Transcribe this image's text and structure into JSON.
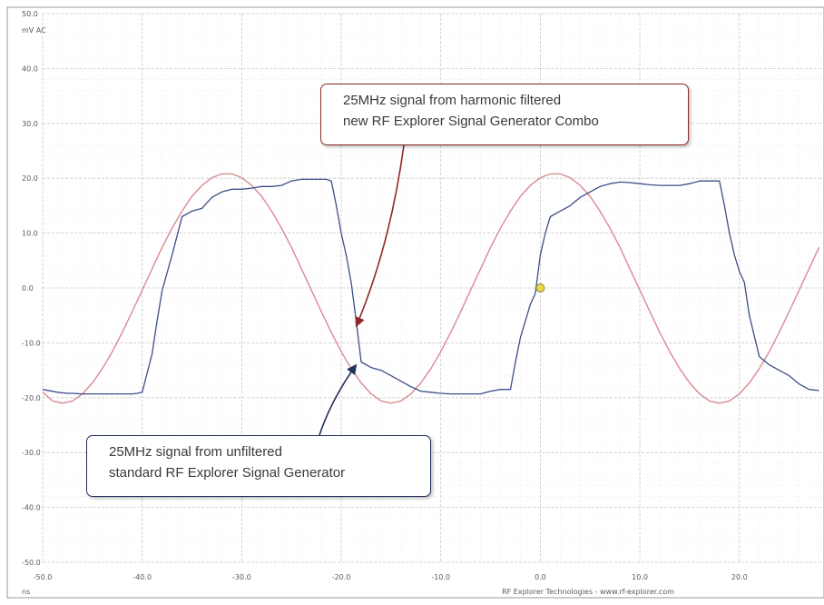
{
  "chart_data": {
    "type": "line",
    "title": "",
    "xlabel": "ns",
    "ylabel": "mV AC",
    "footer": "RF Explorer Technologies - www.rf-explorer.com",
    "xlim": [
      -50,
      28.5
    ],
    "ylim": [
      -50,
      50
    ],
    "x_ticks": [
      -50,
      -40,
      -30,
      -20,
      -10,
      0,
      10,
      20
    ],
    "x_tick_labels": [
      "-50.0",
      "-40.0",
      "-30.0",
      "-20.0",
      "-10.0",
      "0.0",
      "10.0",
      "20.0"
    ],
    "y_ticks": [
      50,
      40,
      30,
      20,
      10,
      0,
      -10,
      -20,
      -30,
      -40,
      -50
    ],
    "y_tick_labels": [
      "50.0",
      "40.0",
      "30.0",
      "20.0",
      "10.0",
      "0.0",
      "-10.0",
      "-20.0",
      "-30.0",
      "-40.0",
      "-50.0"
    ],
    "grid": true,
    "series": [
      {
        "color": "#d98a90",
        "x": [
          -50,
          -49,
          -48,
          -47,
          -46,
          -45,
          -44,
          -43,
          -42,
          -41,
          -40,
          -39,
          -38,
          -37,
          -36,
          -35,
          -34,
          -33,
          -32,
          -31,
          -30,
          -29,
          -28,
          -27,
          -26,
          -25,
          -24,
          -23,
          -22,
          -21,
          -20,
          -19,
          -18,
          -17,
          -16,
          -15,
          -14,
          -13,
          -12,
          -11,
          -10,
          -9,
          -8,
          -7,
          -6,
          -5,
          -4,
          -3,
          -2,
          -1,
          0,
          1,
          2,
          3,
          4,
          5,
          6,
          7,
          8,
          9,
          10,
          11,
          12,
          13,
          14,
          15,
          16,
          17,
          18,
          19,
          20,
          21,
          22,
          23,
          24,
          25,
          26,
          27,
          28
        ],
        "y": [
          -19.0,
          -20.6,
          -21.0,
          -20.6,
          -19.3,
          -17.3,
          -14.7,
          -11.6,
          -8.1,
          -4.3,
          -0.4,
          3.5,
          7.4,
          10.9,
          14.0,
          16.7,
          18.7,
          20.1,
          20.8,
          20.8,
          20.1,
          18.7,
          16.7,
          14.0,
          10.9,
          7.4,
          3.5,
          -0.4,
          -4.3,
          -8.1,
          -11.6,
          -14.7,
          -17.3,
          -19.3,
          -20.6,
          -21.0,
          -20.6,
          -19.3,
          -17.3,
          -14.7,
          -11.6,
          -8.1,
          -4.3,
          -0.4,
          3.5,
          7.4,
          10.9,
          14.0,
          16.7,
          18.7,
          20.1,
          20.8,
          20.8,
          20.1,
          18.7,
          16.7,
          14.0,
          10.9,
          7.4,
          3.5,
          -0.4,
          -4.3,
          -8.1,
          -11.6,
          -14.7,
          -17.3,
          -19.3,
          -20.6,
          -21.0,
          -20.6,
          -19.3,
          -17.3,
          -14.7,
          -11.6,
          -8.1,
          -4.3,
          -0.4,
          3.5,
          7.4
        ]
      },
      {
        "color": "#3d4e8a",
        "x": [
          -50,
          -48.5,
          -47.5,
          -47,
          -46,
          -45,
          -44.5,
          -44,
          -43.5,
          -43,
          -42,
          -41,
          -40.5,
          -40,
          -39,
          -38.5,
          -38,
          -37,
          -36,
          -35,
          -34,
          -33,
          -32,
          -31,
          -30,
          -29,
          -28,
          -27,
          -26,
          -25,
          -24,
          -23,
          -22,
          -21.5,
          -21,
          -20.5,
          -20,
          -19.5,
          -19,
          -18.5,
          -18,
          -17,
          -16,
          -15,
          -14,
          -13,
          -12,
          -11,
          -10,
          -9,
          -8,
          -7,
          -6,
          -5,
          -4,
          -3,
          -2.5,
          -2,
          -1.5,
          -1,
          -0.5,
          0,
          0.5,
          1,
          2,
          3,
          4,
          5,
          6,
          7,
          8,
          9,
          10,
          11,
          12,
          13,
          14,
          15,
          16,
          17,
          18,
          18.5,
          19,
          19.5,
          20,
          20.5,
          21,
          22,
          23,
          24,
          25,
          26,
          27,
          28
        ],
        "y": [
          -18.5,
          -19.0,
          -19.2,
          -19.2,
          -19.3,
          -19.3,
          -19.3,
          -19.3,
          -19.3,
          -19.3,
          -19.3,
          -19.3,
          -19.2,
          -19.0,
          -12.0,
          -6.0,
          -0.5,
          6.0,
          13.0,
          14.0,
          14.5,
          16.5,
          17.5,
          18.0,
          18.0,
          18.2,
          18.5,
          18.5,
          18.7,
          19.5,
          19.8,
          19.8,
          19.8,
          19.8,
          19.5,
          15.0,
          10.0,
          6.0,
          1.0,
          -6.0,
          -13.5,
          -14.5,
          -15.0,
          -16.0,
          -17.0,
          -18.0,
          -18.8,
          -19.0,
          -19.2,
          -19.3,
          -19.3,
          -19.3,
          -19.3,
          -18.8,
          -18.5,
          -18.5,
          -13.5,
          -9.0,
          -6.0,
          -3.0,
          -1.0,
          6.0,
          10.0,
          13.0,
          14.0,
          15.0,
          16.5,
          17.5,
          18.5,
          19.0,
          19.3,
          19.2,
          19.0,
          18.8,
          18.7,
          18.7,
          18.7,
          19.0,
          19.5,
          19.5,
          19.5,
          15.0,
          10.0,
          6.0,
          3.0,
          1.0,
          -5.0,
          -12.5,
          -14.0,
          -15.0,
          -16.0,
          -17.5,
          -18.5,
          -18.7
        ]
      }
    ],
    "marker": {
      "x": 0,
      "y": 0,
      "color": "#e8d84a"
    },
    "annotations": [
      {
        "lines": [
          "25MHz signal from harmonic filtered",
          "new RF Explorer Signal Generator Combo"
        ],
        "border_color": "#8c2a2a",
        "arrow_to": {
          "x": -18.5,
          "y": -7.0
        }
      },
      {
        "lines": [
          "25MHz signal from unfiltered",
          "standard RF Explorer Signal Generator"
        ],
        "border_color": "#24305e",
        "arrow_to": {
          "x": -18.5,
          "y": -14.0
        }
      }
    ]
  }
}
